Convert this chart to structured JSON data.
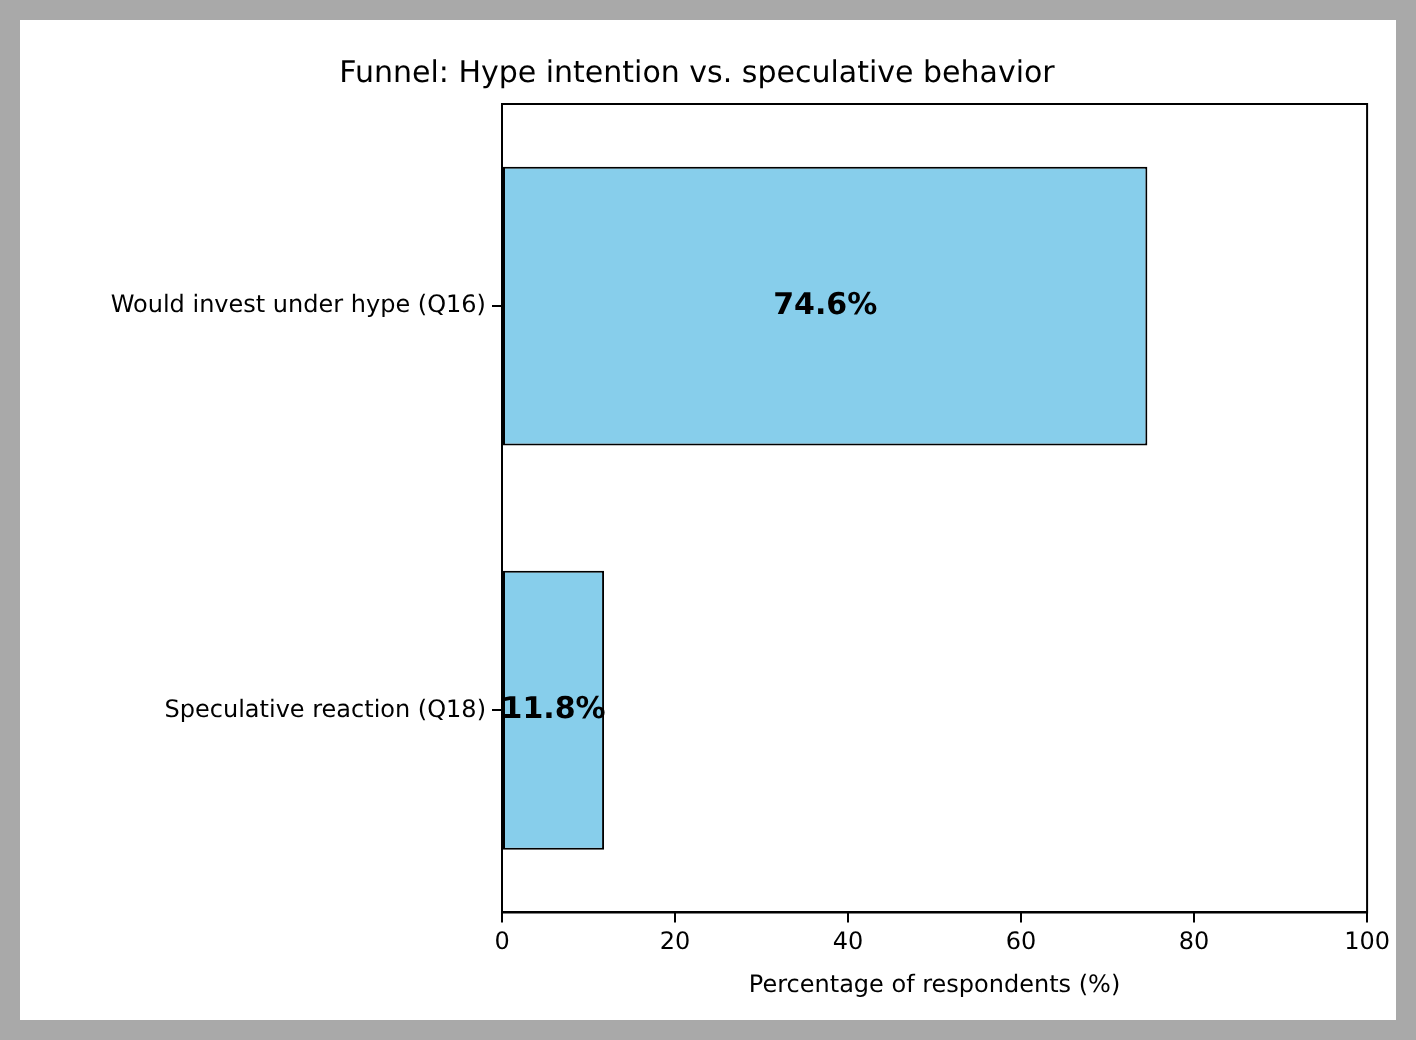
{
  "chart_data": {
    "type": "bar",
    "orientation": "horizontal",
    "title": "Funnel: Hype intention vs. speculative behavior",
    "xlabel": "Percentage of respondents (%)",
    "categories": [
      "Would invest under hype (Q16)",
      "Speculative reaction (Q18)"
    ],
    "values": [
      74.6,
      11.8
    ],
    "color": "#87ceeb",
    "value_labels": [
      "74.6%",
      "11.8%"
    ],
    "xlim": [
      0,
      100
    ],
    "xticks": [
      0,
      20,
      40,
      60,
      80,
      100
    ],
    "grid": false,
    "legend": false
  }
}
